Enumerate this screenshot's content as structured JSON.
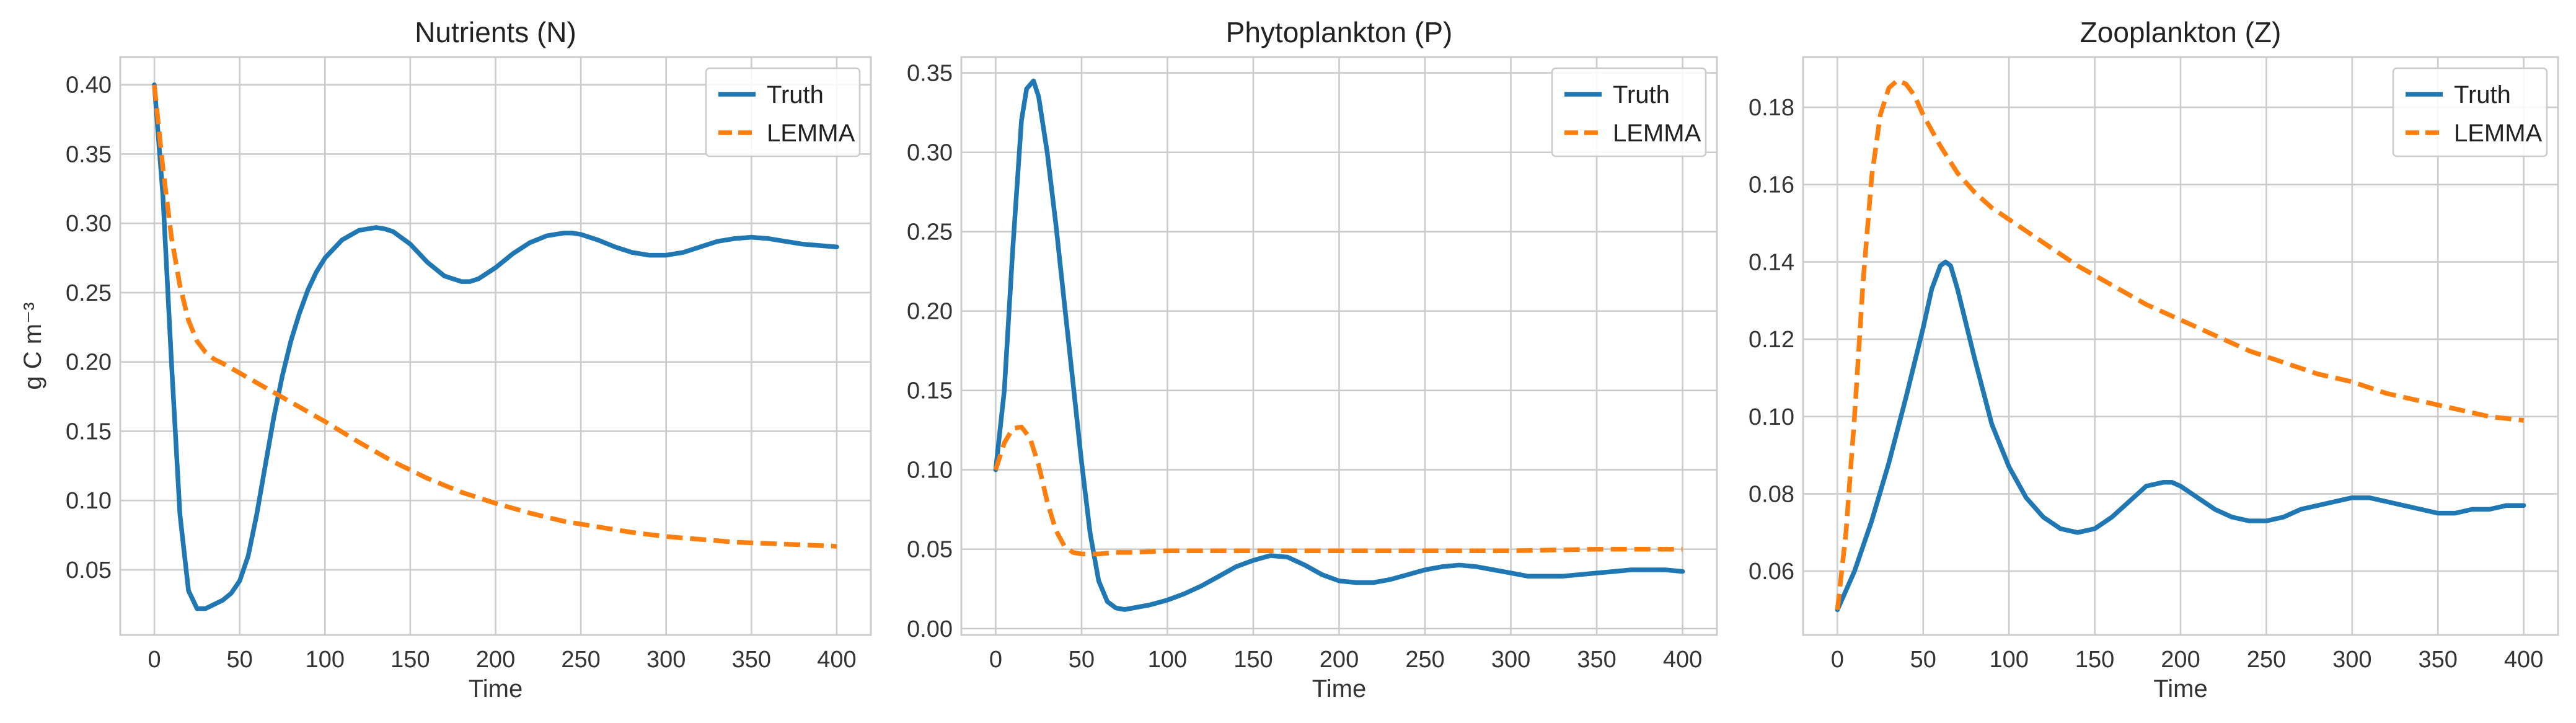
{
  "colors": {
    "truth": "#1f77b4",
    "lemma": "#ff7f0e",
    "grid": "#cccccc",
    "frame": "#cccccc"
  },
  "chart_data": [
    {
      "type": "line",
      "title": "Nutrients (N)",
      "xlabel": "Time",
      "ylabel": "g C m⁻³",
      "xlim": [
        -20,
        420
      ],
      "ylim": [
        0.003,
        0.42
      ],
      "xticks": [
        0,
        50,
        100,
        150,
        200,
        250,
        300,
        350,
        400
      ],
      "yticks": [
        "0.05",
        "0.10",
        "0.15",
        "0.20",
        "0.25",
        "0.30",
        "0.35",
        "0.40"
      ],
      "grid": true,
      "legend_position": "top-right",
      "series": [
        {
          "name": "Truth",
          "style": "solid",
          "color": "#1f77b4",
          "x": [
            0,
            5,
            10,
            15,
            20,
            25,
            30,
            35,
            40,
            45,
            50,
            55,
            60,
            65,
            70,
            75,
            80,
            85,
            90,
            95,
            100,
            110,
            120,
            130,
            135,
            140,
            150,
            160,
            170,
            180,
            185,
            190,
            200,
            210,
            220,
            230,
            240,
            245,
            250,
            260,
            270,
            280,
            290,
            300,
            310,
            320,
            330,
            340,
            350,
            360,
            370,
            380,
            390,
            400
          ],
          "y": [
            0.4,
            0.32,
            0.2,
            0.09,
            0.035,
            0.022,
            0.022,
            0.025,
            0.028,
            0.033,
            0.042,
            0.06,
            0.09,
            0.125,
            0.16,
            0.19,
            0.215,
            0.235,
            0.252,
            0.265,
            0.275,
            0.288,
            0.295,
            0.297,
            0.296,
            0.294,
            0.285,
            0.272,
            0.262,
            0.258,
            0.258,
            0.26,
            0.268,
            0.278,
            0.286,
            0.291,
            0.293,
            0.293,
            0.292,
            0.288,
            0.283,
            0.279,
            0.277,
            0.277,
            0.279,
            0.283,
            0.287,
            0.289,
            0.29,
            0.289,
            0.287,
            0.285,
            0.284,
            0.283
          ]
        },
        {
          "name": "LEMMA",
          "style": "dashed",
          "color": "#ff7f0e",
          "x": [
            0,
            5,
            10,
            15,
            20,
            25,
            30,
            35,
            40,
            50,
            60,
            70,
            80,
            90,
            100,
            120,
            140,
            160,
            180,
            200,
            220,
            240,
            260,
            280,
            300,
            320,
            340,
            360,
            380,
            400
          ],
          "y": [
            0.4,
            0.34,
            0.29,
            0.255,
            0.23,
            0.215,
            0.207,
            0.202,
            0.199,
            0.192,
            0.185,
            0.178,
            0.171,
            0.164,
            0.157,
            0.142,
            0.128,
            0.116,
            0.106,
            0.098,
            0.091,
            0.085,
            0.081,
            0.077,
            0.074,
            0.072,
            0.07,
            0.069,
            0.068,
            0.067
          ]
        }
      ]
    },
    {
      "type": "line",
      "title": "Phytoplankton (P)",
      "xlabel": "Time",
      "ylabel": "",
      "xlim": [
        -20,
        420
      ],
      "ylim": [
        -0.004,
        0.36
      ],
      "xticks": [
        0,
        50,
        100,
        150,
        200,
        250,
        300,
        350,
        400
      ],
      "yticks": [
        "0.00",
        "0.05",
        "0.10",
        "0.15",
        "0.20",
        "0.25",
        "0.30",
        "0.35"
      ],
      "grid": true,
      "legend_position": "top-right",
      "series": [
        {
          "name": "Truth",
          "style": "solid",
          "color": "#1f77b4",
          "x": [
            0,
            5,
            10,
            15,
            18,
            22,
            25,
            30,
            35,
            40,
            45,
            50,
            55,
            60,
            65,
            70,
            75,
            80,
            90,
            100,
            110,
            120,
            130,
            140,
            150,
            160,
            170,
            180,
            190,
            200,
            210,
            220,
            230,
            240,
            250,
            260,
            270,
            280,
            290,
            300,
            310,
            320,
            330,
            340,
            350,
            360,
            370,
            380,
            390,
            400
          ],
          "y": [
            0.1,
            0.15,
            0.24,
            0.32,
            0.34,
            0.345,
            0.335,
            0.3,
            0.255,
            0.205,
            0.155,
            0.105,
            0.06,
            0.03,
            0.017,
            0.013,
            0.012,
            0.013,
            0.015,
            0.018,
            0.022,
            0.027,
            0.033,
            0.039,
            0.043,
            0.046,
            0.045,
            0.04,
            0.034,
            0.03,
            0.029,
            0.029,
            0.031,
            0.034,
            0.037,
            0.039,
            0.04,
            0.039,
            0.037,
            0.035,
            0.033,
            0.033,
            0.033,
            0.034,
            0.035,
            0.036,
            0.037,
            0.037,
            0.037,
            0.036
          ]
        },
        {
          "name": "LEMMA",
          "style": "dashed",
          "color": "#ff7f0e",
          "x": [
            0,
            5,
            10,
            15,
            20,
            25,
            30,
            35,
            40,
            45,
            50,
            60,
            70,
            80,
            100,
            150,
            200,
            250,
            300,
            350,
            400
          ],
          "y": [
            0.1,
            0.117,
            0.126,
            0.127,
            0.12,
            0.103,
            0.08,
            0.062,
            0.052,
            0.048,
            0.047,
            0.047,
            0.048,
            0.048,
            0.049,
            0.049,
            0.049,
            0.049,
            0.049,
            0.05,
            0.05
          ]
        }
      ]
    },
    {
      "type": "line",
      "title": "Zooplankton (Z)",
      "xlabel": "Time",
      "ylabel": "",
      "xlim": [
        -20,
        420
      ],
      "ylim": [
        0.0435,
        0.193
      ],
      "xticks": [
        0,
        50,
        100,
        150,
        200,
        250,
        300,
        350,
        400
      ],
      "yticks": [
        "0.06",
        "0.08",
        "0.10",
        "0.12",
        "0.14",
        "0.16",
        "0.18"
      ],
      "grid": true,
      "legend_position": "top-right",
      "series": [
        {
          "name": "Truth",
          "style": "solid",
          "color": "#1f77b4",
          "x": [
            0,
            10,
            20,
            30,
            40,
            50,
            55,
            60,
            63,
            66,
            70,
            80,
            90,
            100,
            110,
            120,
            130,
            140,
            150,
            160,
            170,
            180,
            190,
            195,
            200,
            210,
            220,
            230,
            240,
            250,
            260,
            270,
            280,
            290,
            300,
            305,
            310,
            320,
            330,
            340,
            350,
            360,
            370,
            380,
            390,
            400
          ],
          "y": [
            0.05,
            0.06,
            0.073,
            0.088,
            0.105,
            0.123,
            0.133,
            0.139,
            0.14,
            0.139,
            0.133,
            0.115,
            0.098,
            0.087,
            0.079,
            0.074,
            0.071,
            0.07,
            0.071,
            0.074,
            0.078,
            0.082,
            0.083,
            0.083,
            0.082,
            0.079,
            0.076,
            0.074,
            0.073,
            0.073,
            0.074,
            0.076,
            0.077,
            0.078,
            0.079,
            0.079,
            0.079,
            0.078,
            0.077,
            0.076,
            0.075,
            0.075,
            0.076,
            0.076,
            0.077,
            0.077
          ]
        },
        {
          "name": "LEMMA",
          "style": "dashed",
          "color": "#ff7f0e",
          "x": [
            0,
            5,
            10,
            15,
            20,
            25,
            30,
            35,
            40,
            45,
            50,
            60,
            70,
            80,
            90,
            100,
            120,
            140,
            160,
            180,
            200,
            220,
            240,
            260,
            280,
            300,
            320,
            340,
            360,
            380,
            400
          ],
          "y": [
            0.05,
            0.07,
            0.1,
            0.135,
            0.162,
            0.178,
            0.185,
            0.187,
            0.186,
            0.183,
            0.178,
            0.17,
            0.163,
            0.158,
            0.154,
            0.151,
            0.145,
            0.139,
            0.134,
            0.129,
            0.125,
            0.121,
            0.117,
            0.114,
            0.111,
            0.109,
            0.106,
            0.104,
            0.102,
            0.1,
            0.099
          ]
        }
      ]
    }
  ]
}
